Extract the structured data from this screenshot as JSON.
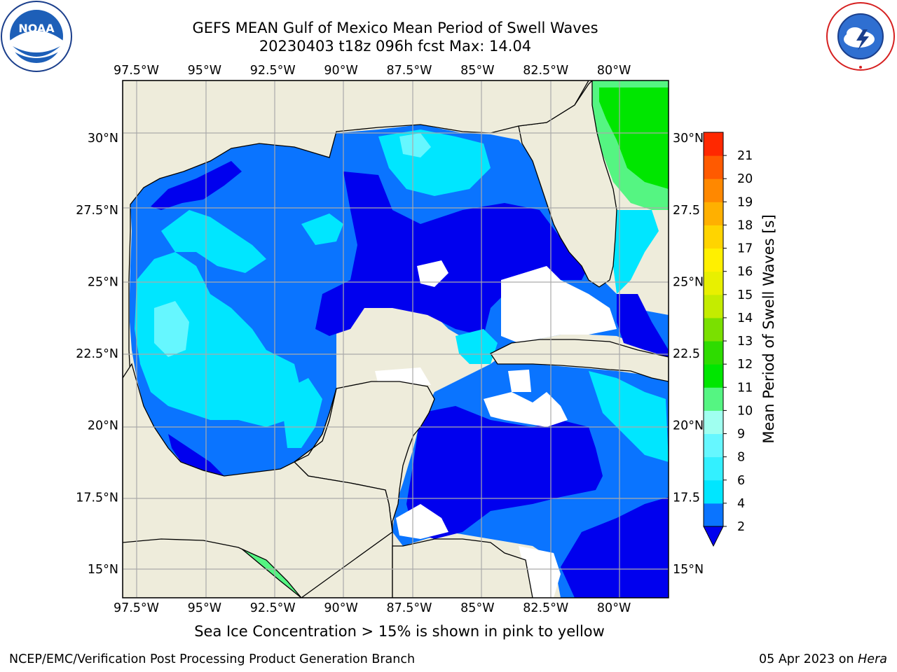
{
  "header": {
    "title_line1": "GEFS MEAN Gulf of Mexico Mean Period of Swell Waves",
    "title_line2": "20230403 t18z 096h fcst   Max: 14.04"
  },
  "logos": {
    "left": "noaa-logo",
    "right": "nws-logo"
  },
  "caption": "Sea Ice Concentration > 15% is shown in pink to yellow",
  "footer": {
    "left": "NCEP/EMC/Verification Post Processing Product Generation Branch",
    "right_date": "05 Apr 2023 on ",
    "right_host": "Hera"
  },
  "chart_data": {
    "type": "heatmap",
    "map": {
      "lon_range": [
        -98.0,
        -78.0
      ],
      "lat_range": [
        14.0,
        32.0
      ],
      "x_ticks": [
        "97.5°W",
        "95°W",
        "92.5°W",
        "90°W",
        "87.5°W",
        "85°W",
        "82.5°W",
        "80°W"
      ],
      "x_tick_values": [
        -97.5,
        -95.0,
        -92.5,
        -90.0,
        -87.5,
        -85.0,
        -82.5,
        -80.0
      ],
      "y_ticks": [
        "15°N",
        "17.5°N",
        "20°N",
        "22.5°N",
        "25°N",
        "27.5°N",
        "30°N"
      ],
      "y_tick_values": [
        15.0,
        17.5,
        20.0,
        22.5,
        25.0,
        27.5,
        30.0
      ],
      "right_y_ticks": [
        "15°N",
        "17.5",
        "20°N",
        "22.5",
        "25°N",
        "27.5",
        "30°N"
      ],
      "grid": true,
      "land_color": "#eeecdb"
    },
    "colorbar": {
      "label": "Mean Period of Swell Waves [s]",
      "tick_labels": [
        "2",
        "4",
        "6",
        "8",
        "9",
        "10",
        "11",
        "12",
        "13",
        "14",
        "15",
        "16",
        "17",
        "18",
        "19",
        "20",
        "21"
      ],
      "levels": [
        2,
        4,
        6,
        8,
        9,
        10,
        11,
        12,
        13,
        14,
        15,
        16,
        17,
        18,
        19,
        20,
        21
      ],
      "colors": [
        "#0a74ff",
        "#00e6ff",
        "#33f0ff",
        "#66f7ff",
        "#a0fff0",
        "#55f582",
        "#00e600",
        "#2edc00",
        "#7ae000",
        "#c4ec00",
        "#e8f000",
        "#fff000",
        "#ffd400",
        "#ffb000",
        "#ff8800",
        "#ff5a00",
        "#ff2800"
      ],
      "extend_min_color": "#0000ee"
    },
    "max_value": 14.04
  }
}
